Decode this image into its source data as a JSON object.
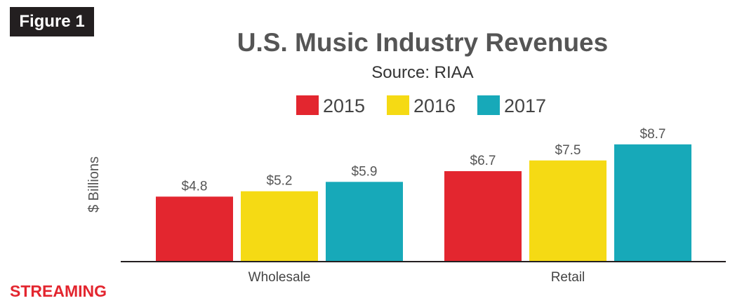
{
  "figure_tag": "Figure 1",
  "section_label": "STREAMING",
  "chart_data": {
    "type": "bar",
    "title": "U.S. Music Industry Revenues",
    "subtitle": "Source: RIAA",
    "ylabel": "$ Billions",
    "xlabel": "",
    "categories": [
      "Wholesale",
      "Retail"
    ],
    "series": [
      {
        "name": "2015",
        "color": "#e3262f",
        "values": [
          4.8,
          6.7
        ],
        "labels": [
          "$4.8",
          "$6.7"
        ]
      },
      {
        "name": "2016",
        "color": "#f5da14",
        "values": [
          5.2,
          7.5
        ],
        "labels": [
          "$5.2",
          "$7.5"
        ]
      },
      {
        "name": "2017",
        "color": "#17a9b9",
        "values": [
          5.9,
          8.7
        ],
        "labels": [
          "$5.9",
          "$8.7"
        ]
      }
    ],
    "ylim": [
      0,
      9
    ],
    "grid": false,
    "legend": "top-center"
  }
}
